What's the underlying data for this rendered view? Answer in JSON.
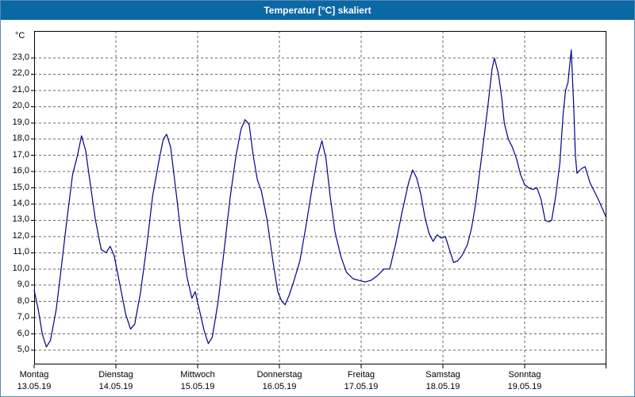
{
  "window": {
    "title": "Temperatur [°C] skaliert"
  },
  "chart_data": {
    "type": "line",
    "title": "Temperatur [°C] skaliert",
    "xlabel": "",
    "ylabel": "°C",
    "ylim": [
      5,
      23
    ],
    "ytick_step": 1,
    "grid": true,
    "legend_position": "none",
    "line_color": "#00008b",
    "ytick_labels": [
      "23,0",
      "22,0",
      "21,0",
      "20,0",
      "19,0",
      "18,0",
      "17,0",
      "16,0",
      "15,0",
      "14,0",
      "13,0",
      "12,0",
      "11,0",
      "10,0",
      "9,0",
      "8,0",
      "7,0",
      "6,0",
      "5,0"
    ],
    "x_days": [
      {
        "name": "Montag",
        "date": "13.05.19"
      },
      {
        "name": "Dienstag",
        "date": "14.05.19"
      },
      {
        "name": "Mittwoch",
        "date": "15.05.19"
      },
      {
        "name": "Donnerstag",
        "date": "16.05.19"
      },
      {
        "name": "Freitag",
        "date": "17.05.19"
      },
      {
        "name": "Samstag",
        "date": "18.05.19"
      },
      {
        "name": "Sonntag",
        "date": "19.05.19"
      }
    ],
    "series": [
      {
        "name": "Temperatur [°C]",
        "x_unit": "days_from_13_05",
        "points": [
          [
            0.0,
            8.7
          ],
          [
            0.05,
            7.5
          ],
          [
            0.1,
            6.0
          ],
          [
            0.15,
            5.2
          ],
          [
            0.2,
            5.6
          ],
          [
            0.27,
            7.5
          ],
          [
            0.33,
            10.0
          ],
          [
            0.4,
            13.0
          ],
          [
            0.47,
            15.8
          ],
          [
            0.53,
            17.0
          ],
          [
            0.58,
            18.2
          ],
          [
            0.63,
            17.3
          ],
          [
            0.68,
            15.5
          ],
          [
            0.75,
            13.0
          ],
          [
            0.82,
            11.2
          ],
          [
            0.88,
            11.0
          ],
          [
            0.93,
            11.4
          ],
          [
            0.98,
            10.8
          ],
          [
            1.05,
            9.0
          ],
          [
            1.12,
            7.2
          ],
          [
            1.18,
            6.3
          ],
          [
            1.23,
            6.6
          ],
          [
            1.3,
            8.5
          ],
          [
            1.38,
            11.5
          ],
          [
            1.45,
            14.5
          ],
          [
            1.52,
            16.5
          ],
          [
            1.58,
            18.0
          ],
          [
            1.62,
            18.3
          ],
          [
            1.67,
            17.5
          ],
          [
            1.73,
            15.0
          ],
          [
            1.8,
            12.0
          ],
          [
            1.87,
            9.5
          ],
          [
            1.93,
            8.2
          ],
          [
            1.97,
            8.6
          ],
          [
            2.02,
            7.5
          ],
          [
            2.08,
            6.2
          ],
          [
            2.13,
            5.4
          ],
          [
            2.18,
            5.8
          ],
          [
            2.25,
            8.0
          ],
          [
            2.32,
            11.0
          ],
          [
            2.4,
            14.5
          ],
          [
            2.47,
            17.0
          ],
          [
            2.53,
            18.6
          ],
          [
            2.58,
            19.2
          ],
          [
            2.63,
            18.9
          ],
          [
            2.68,
            17.0
          ],
          [
            2.73,
            15.5
          ],
          [
            2.78,
            14.8
          ],
          [
            2.85,
            13.0
          ],
          [
            2.92,
            10.5
          ],
          [
            2.98,
            8.6
          ],
          [
            3.03,
            8.0
          ],
          [
            3.07,
            7.8
          ],
          [
            3.12,
            8.4
          ],
          [
            3.18,
            9.3
          ],
          [
            3.25,
            10.5
          ],
          [
            3.32,
            12.5
          ],
          [
            3.4,
            15.0
          ],
          [
            3.47,
            17.0
          ],
          [
            3.52,
            17.9
          ],
          [
            3.57,
            16.8
          ],
          [
            3.62,
            14.5
          ],
          [
            3.68,
            12.3
          ],
          [
            3.75,
            10.8
          ],
          [
            3.82,
            9.8
          ],
          [
            3.9,
            9.4
          ],
          [
            3.97,
            9.3
          ],
          [
            4.05,
            9.2
          ],
          [
            4.12,
            9.3
          ],
          [
            4.2,
            9.6
          ],
          [
            4.28,
            10.0
          ],
          [
            4.35,
            10.0
          ],
          [
            4.42,
            11.5
          ],
          [
            4.5,
            13.5
          ],
          [
            4.58,
            15.3
          ],
          [
            4.63,
            16.1
          ],
          [
            4.68,
            15.6
          ],
          [
            4.73,
            14.6
          ],
          [
            4.78,
            13.2
          ],
          [
            4.83,
            12.2
          ],
          [
            4.88,
            11.7
          ],
          [
            4.93,
            12.1
          ],
          [
            4.98,
            11.9
          ],
          [
            5.03,
            12.0
          ],
          [
            5.08,
            11.2
          ],
          [
            5.13,
            10.4
          ],
          [
            5.18,
            10.5
          ],
          [
            5.23,
            10.8
          ],
          [
            5.3,
            11.5
          ],
          [
            5.35,
            12.5
          ],
          [
            5.4,
            14.0
          ],
          [
            5.45,
            16.0
          ],
          [
            5.5,
            18.0
          ],
          [
            5.55,
            20.0
          ],
          [
            5.6,
            22.3
          ],
          [
            5.63,
            23.0
          ],
          [
            5.68,
            22.0
          ],
          [
            5.72,
            20.5
          ],
          [
            5.75,
            19.0
          ],
          [
            5.8,
            18.0
          ],
          [
            5.85,
            17.5
          ],
          [
            5.9,
            16.8
          ],
          [
            5.95,
            15.8
          ],
          [
            6.0,
            15.2
          ],
          [
            6.05,
            15.0
          ],
          [
            6.1,
            14.9
          ],
          [
            6.15,
            15.0
          ],
          [
            6.2,
            14.3
          ],
          [
            6.25,
            13.0
          ],
          [
            6.3,
            12.9
          ],
          [
            6.33,
            13.0
          ],
          [
            6.38,
            14.5
          ],
          [
            6.43,
            16.5
          ],
          [
            6.47,
            19.5
          ],
          [
            6.5,
            21.0
          ],
          [
            6.53,
            21.5
          ],
          [
            6.57,
            23.5
          ],
          [
            6.6,
            20.0
          ],
          [
            6.62,
            17.0
          ],
          [
            6.64,
            15.9
          ],
          [
            6.7,
            16.2
          ],
          [
            6.74,
            16.3
          ],
          [
            6.8,
            15.3
          ],
          [
            6.9,
            14.3
          ],
          [
            7.0,
            13.2
          ]
        ]
      }
    ]
  }
}
